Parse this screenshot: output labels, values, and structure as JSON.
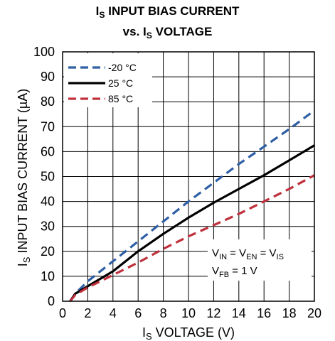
{
  "chart_data": {
    "type": "line",
    "title_line1": {
      "main": "I",
      "sub": "S",
      "rest": " INPUT BIAS CURRENT"
    },
    "title_line2": {
      "pre": "vs. I",
      "sub": "S",
      "rest": " VOLTAGE"
    },
    "xlabel": {
      "main": "I",
      "sub": "S",
      "rest": " VOLTAGE (V)"
    },
    "ylabel": {
      "main": "I",
      "sub": "S",
      "rest": " INPUT BIAS CURRENT (µA)"
    },
    "xlim": [
      0,
      20
    ],
    "ylim": [
      0,
      100
    ],
    "xticks": [
      0,
      2,
      4,
      6,
      8,
      10,
      12,
      14,
      16,
      18,
      20
    ],
    "yticks": [
      0,
      10,
      20,
      30,
      40,
      50,
      60,
      70,
      80,
      90,
      100
    ],
    "grid": true,
    "legend_position": "top-left",
    "series": [
      {
        "name": "-20 °C",
        "color": "#2e5fa5",
        "dash": "dashed",
        "x": [
          0.6,
          1,
          2,
          4,
          6,
          8,
          10,
          12,
          14,
          16,
          18,
          20
        ],
        "y": [
          0,
          3,
          8,
          16,
          24,
          32,
          40,
          47.5,
          55,
          62,
          69,
          76.5
        ]
      },
      {
        "name": "25 °C",
        "color": "#000000",
        "dash": "solid",
        "x": [
          0.6,
          1,
          2,
          4,
          6,
          8,
          10,
          12,
          14,
          16,
          18,
          20
        ],
        "y": [
          0,
          3,
          6,
          12,
          20,
          27,
          33.5,
          39.5,
          45,
          50.5,
          56.5,
          62.5
        ]
      },
      {
        "name": "85 °C",
        "color": "#c0303c",
        "dash": "dashed",
        "x": [
          0.6,
          1,
          2,
          4,
          6,
          8,
          10,
          12,
          14,
          16,
          18,
          20
        ],
        "y": [
          0,
          2.5,
          5.5,
          10.5,
          15.5,
          21,
          26,
          30.5,
          35,
          40,
          45,
          50.5
        ]
      }
    ],
    "annotation": {
      "line1": [
        {
          "t": "V"
        },
        {
          "t": "IN",
          "sub": true
        },
        {
          "t": " = V"
        },
        {
          "t": "EN",
          "sub": true
        },
        {
          "t": " = V"
        },
        {
          "t": "IS",
          "sub": true
        }
      ],
      "line2": [
        {
          "t": "V"
        },
        {
          "t": "FB",
          "sub": true
        },
        {
          "t": " = 1 V"
        }
      ]
    }
  }
}
